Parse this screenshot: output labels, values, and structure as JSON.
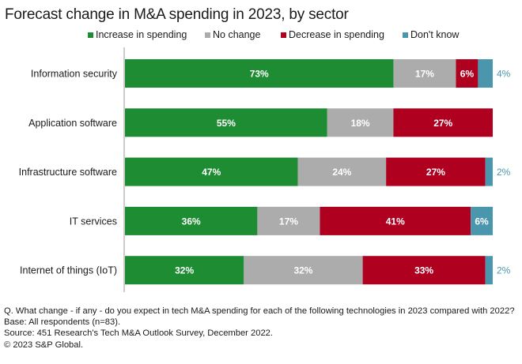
{
  "chart_data": {
    "type": "bar",
    "orientation": "horizontal",
    "stacked": true,
    "title": "Forecast change in M&A spending in 2023, by sector",
    "xlabel": "",
    "ylabel": "",
    "xlim": [
      0,
      100
    ],
    "grid": false,
    "legend_position": "top",
    "categories": [
      "Information security",
      "Application software",
      "Infrastructure software",
      "IT services",
      "Internet of things (IoT)"
    ],
    "series": [
      {
        "name": "Increase in spending",
        "color": "#1e8c33",
        "values": [
          73,
          55,
          47,
          36,
          32
        ]
      },
      {
        "name": "No change",
        "color": "#acacac",
        "values": [
          17,
          18,
          24,
          17,
          32
        ]
      },
      {
        "name": "Decrease in spending",
        "color": "#b00020",
        "values": [
          6,
          27,
          27,
          41,
          33
        ]
      },
      {
        "name": "Don't know",
        "color": "#4a97ad",
        "values": [
          4,
          0,
          2,
          6,
          2
        ]
      }
    ],
    "data_labels": [
      [
        "73%",
        "17%",
        "6%",
        "4%"
      ],
      [
        "55%",
        "18%",
        "27%",
        ""
      ],
      [
        "47%",
        "24%",
        "27%",
        "2%"
      ],
      [
        "36%",
        "17%",
        "41%",
        "6%"
      ],
      [
        "32%",
        "32%",
        "33%",
        "2%"
      ]
    ],
    "label_outside": [
      [
        false,
        false,
        false,
        true
      ],
      [
        false,
        false,
        false,
        false
      ],
      [
        false,
        false,
        false,
        true
      ],
      [
        false,
        false,
        false,
        false
      ],
      [
        false,
        false,
        false,
        true
      ]
    ]
  },
  "colors": {
    "axis": "#cccccc",
    "text": "#1a1a1a",
    "outside_label": "#4a97ad"
  },
  "footnote": {
    "question": "Q. What change - if any - do you expect in tech M&A spending for each of the following technologies in 2023 compared with 2022?",
    "base": "Base: All respondents (n=83).",
    "source": "Source: 451 Research's Tech M&A Outlook Survey, December 2022.",
    "copyright": "© 2023 S&P Global."
  }
}
